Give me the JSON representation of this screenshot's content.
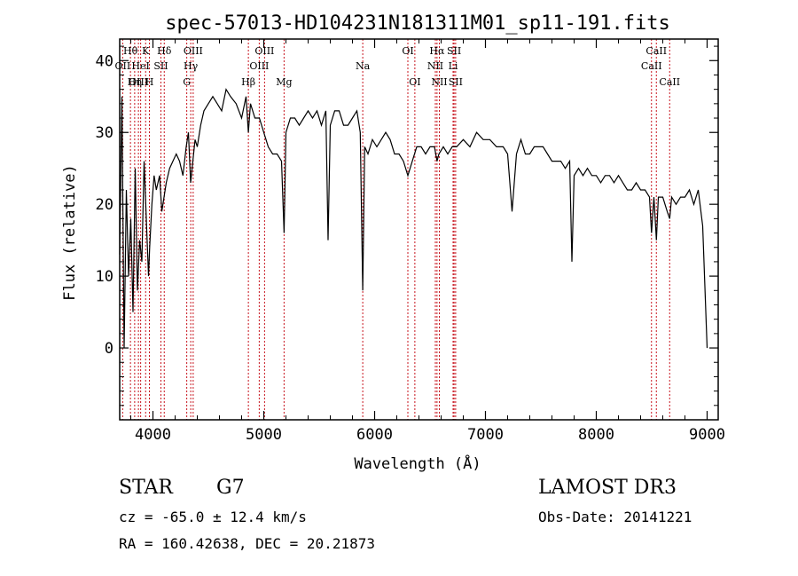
{
  "title": "spec-57013-HD104231N181311M01_sp11-191.fits",
  "chart_data": {
    "type": "line",
    "title": "spec-57013-HD104231N181311M01_sp11-191.fits",
    "xlabel": "Wavelength (Å)",
    "ylabel": "Flux (relative)",
    "xlim": [
      3700,
      9100
    ],
    "ylim": [
      -10,
      43
    ],
    "xticks": [
      4000,
      5000,
      6000,
      7000,
      8000,
      9000
    ],
    "yticks": [
      0,
      10,
      20,
      30,
      40
    ],
    "grid": false,
    "series": [
      {
        "x": [
          3700,
          3720,
          3740,
          3760,
          3780,
          3800,
          3820,
          3840,
          3860,
          3880,
          3900,
          3920,
          3940,
          3960,
          3970,
          3990,
          4010,
          4030,
          4060,
          4080,
          4100,
          4120,
          4150,
          4180,
          4210,
          4240,
          4270,
          4300,
          4320,
          4340,
          4360,
          4380,
          4400,
          4430,
          4460,
          4500,
          4540,
          4580,
          4620,
          4660,
          4700,
          4750,
          4800,
          4840,
          4861,
          4880,
          4920,
          4960,
          5000,
          5040,
          5080,
          5120,
          5160,
          5183,
          5200,
          5240,
          5280,
          5320,
          5360,
          5400,
          5440,
          5480,
          5520,
          5560,
          5580,
          5600,
          5640,
          5680,
          5720,
          5760,
          5800,
          5840,
          5870,
          5893,
          5910,
          5940,
          5980,
          6020,
          6060,
          6100,
          6140,
          6180,
          6220,
          6260,
          6300,
          6340,
          6380,
          6420,
          6460,
          6500,
          6540,
          6563,
          6580,
          6620,
          6660,
          6700,
          6740,
          6800,
          6860,
          6920,
          6980,
          7040,
          7100,
          7160,
          7200,
          7240,
          7280,
          7320,
          7360,
          7400,
          7440,
          7480,
          7520,
          7560,
          7600,
          7640,
          7680,
          7720,
          7760,
          7780,
          7800,
          7840,
          7880,
          7920,
          7960,
          8000,
          8040,
          8080,
          8120,
          8160,
          8200,
          8240,
          8280,
          8320,
          8360,
          8400,
          8440,
          8480,
          8498,
          8520,
          8542,
          8560,
          8600,
          8640,
          8662,
          8680,
          8720,
          8760,
          8800,
          8840,
          8880,
          8920,
          8960,
          9000
        ],
        "y": [
          13,
          35,
          0,
          22,
          10,
          18,
          5,
          25,
          8,
          15,
          12,
          26,
          18,
          10,
          14,
          20,
          24,
          22,
          24,
          19,
          21,
          23,
          25,
          26,
          27,
          26,
          24,
          28,
          30,
          23,
          26,
          29,
          28,
          31,
          33,
          34,
          35,
          34,
          33,
          36,
          35,
          34,
          32,
          35,
          30,
          34,
          32,
          32,
          30,
          28,
          27,
          27,
          26,
          16,
          30,
          32,
          32,
          31,
          32,
          33,
          32,
          33,
          31,
          33,
          15,
          31,
          33,
          33,
          31,
          31,
          32,
          33,
          30,
          8,
          28,
          27,
          29,
          28,
          29,
          30,
          29,
          27,
          27,
          26,
          24,
          26,
          28,
          28,
          27,
          28,
          28,
          26,
          27,
          28,
          27,
          28,
          28,
          29,
          28,
          30,
          29,
          29,
          28,
          28,
          27,
          19,
          27,
          29,
          27,
          27,
          28,
          28,
          28,
          27,
          26,
          26,
          26,
          25,
          26,
          12,
          24,
          25,
          24,
          25,
          24,
          24,
          23,
          24,
          24,
          23,
          24,
          23,
          22,
          22,
          23,
          22,
          22,
          21,
          16,
          21,
          15,
          21,
          21,
          19,
          18,
          21,
          20,
          21,
          21,
          22,
          20,
          22,
          17,
          0
        ]
      }
    ],
    "spectral_lines": [
      {
        "label": "OII",
        "x": 3727,
        "row": 1
      },
      {
        "label": "Hθ",
        "x": 3797,
        "row": 0
      },
      {
        "label": "OIII",
        "x": 3869,
        "row": 2
      },
      {
        "label": "HeI",
        "x": 3889,
        "row": 1
      },
      {
        "label": "K",
        "x": 3934,
        "row": 0
      },
      {
        "label": "Hη",
        "x": 3835,
        "row": 2
      },
      {
        "label": "H",
        "x": 3968,
        "row": 2
      },
      {
        "label": "SII",
        "x": 4072,
        "row": 1
      },
      {
        "label": "Hδ",
        "x": 4102,
        "row": 0
      },
      {
        "label": "OIII",
        "x": 4363,
        "row": 0
      },
      {
        "label": "Hγ",
        "x": 4341,
        "row": 1
      },
      {
        "label": "G",
        "x": 4305,
        "row": 2
      },
      {
        "label": "Hβ",
        "x": 4861,
        "row": 2
      },
      {
        "label": "OIII",
        "x": 5007,
        "row": 0
      },
      {
        "label": "OIII",
        "x": 4959,
        "row": 1
      },
      {
        "label": "Mg",
        "x": 5183,
        "row": 2
      },
      {
        "label": "Na",
        "x": 5893,
        "row": 1
      },
      {
        "label": "OI",
        "x": 6300,
        "row": 0
      },
      {
        "label": "OI",
        "x": 6363,
        "row": 2
      },
      {
        "label": "Hα",
        "x": 6563,
        "row": 0
      },
      {
        "label": "NII",
        "x": 6548,
        "row": 1
      },
      {
        "label": "NII",
        "x": 6584,
        "row": 2
      },
      {
        "label": "SII",
        "x": 6717,
        "row": 0
      },
      {
        "label": "Li",
        "x": 6708,
        "row": 1
      },
      {
        "label": "SII",
        "x": 6731,
        "row": 2
      },
      {
        "label": "CaII",
        "x": 8498,
        "row": 1
      },
      {
        "label": "CaII",
        "x": 8542,
        "row": 0
      },
      {
        "label": "CaII",
        "x": 8662,
        "row": 2
      }
    ]
  },
  "info": {
    "object_class": "STAR",
    "subclass": "G7",
    "survey": "LAMOST DR3",
    "redshift_line": "cz = -65.0 ± 12.4 km/s",
    "obs_date_line": "Obs-Date: 20141221",
    "coords_line": "RA = 160.42638, DEC =  20.21873"
  }
}
